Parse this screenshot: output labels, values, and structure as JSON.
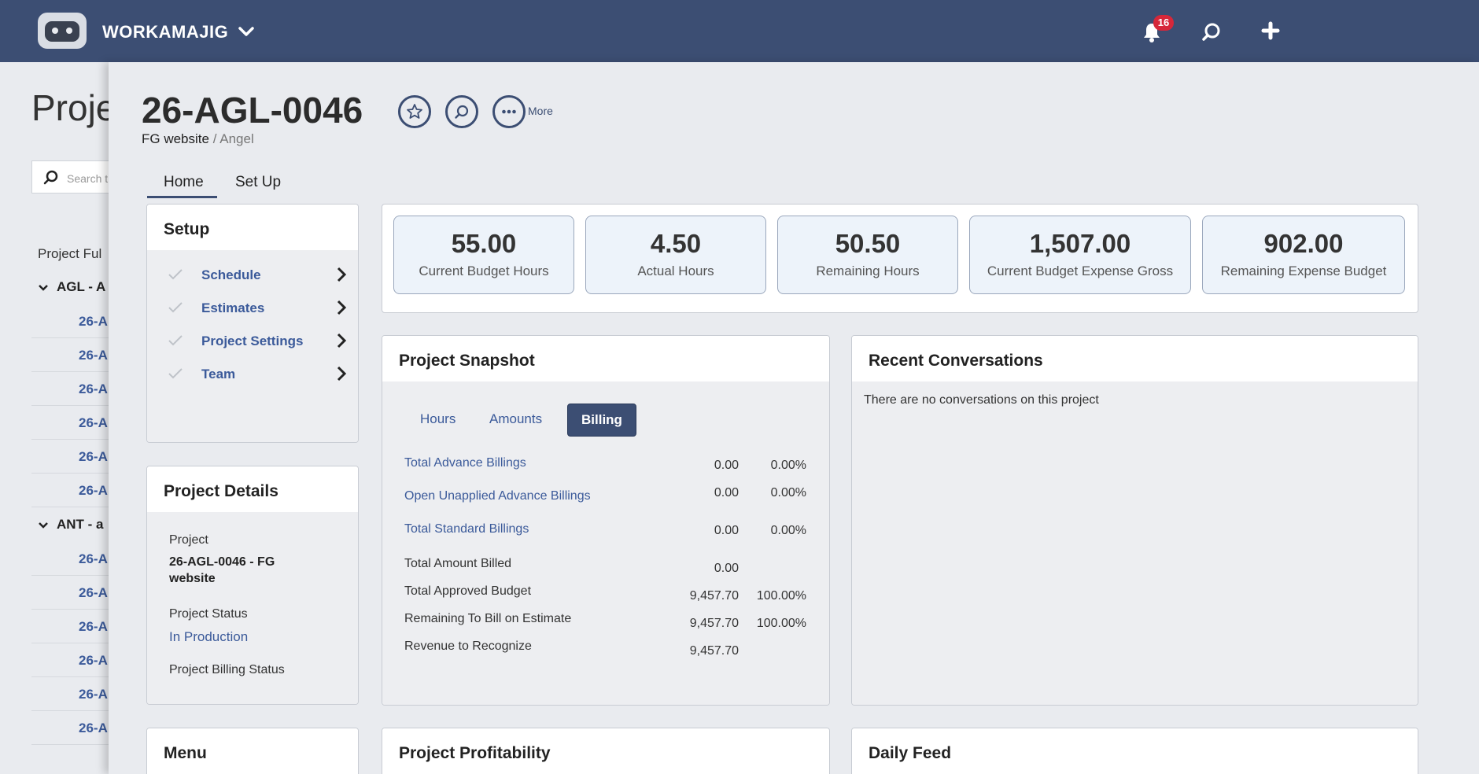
{
  "topbar": {
    "brand": "WORKAMAJIG",
    "notification_count": "16"
  },
  "background": {
    "title": "Proje",
    "search_placeholder": "Search t",
    "column_header": "Project Ful",
    "groups": [
      {
        "label": "AGL - A",
        "rows": [
          "26-A",
          "26-A",
          "26-A",
          "26-A",
          "26-A",
          "26-A"
        ]
      },
      {
        "label": "ANT - a",
        "rows": [
          "26-A",
          "26-A",
          "26-A",
          "26-A",
          "26-A",
          "26-A"
        ]
      }
    ]
  },
  "project": {
    "number": "26-AGL-0046",
    "more_label": "More",
    "breadcrumb_name": "FG website",
    "breadcrumb_sep": "/",
    "breadcrumb_owner": "Angel"
  },
  "tabs": [
    "Home",
    "Set Up"
  ],
  "setup": {
    "title": "Setup",
    "items": [
      "Schedule",
      "Estimates",
      "Project Settings",
      "Team"
    ]
  },
  "details": {
    "title": "Project Details",
    "project_label": "Project",
    "project_value": "26-AGL-0046 - FG website",
    "status_label": "Project Status",
    "status_value": "In Production",
    "billing_status_label": "Project Billing Status"
  },
  "kpis": [
    {
      "value": "55.00",
      "label": "Current Budget Hours"
    },
    {
      "value": "4.50",
      "label": "Actual Hours"
    },
    {
      "value": "50.50",
      "label": "Remaining Hours"
    },
    {
      "value": "1,507.00",
      "label": "Current Budget Expense Gross"
    },
    {
      "value": "902.00",
      "label": "Remaining Expense Budget"
    }
  ],
  "snapshot": {
    "title": "Project Snapshot",
    "tabs": [
      "Hours",
      "Amounts",
      "Billing"
    ],
    "active_tab": "Billing",
    "rows": [
      {
        "label": "Total Advance Billings",
        "value": "0.00",
        "pct": "0.00%"
      },
      {
        "label": "Open Unapplied Advance Billings",
        "value": "0.00",
        "pct": "0.00%"
      },
      {
        "label": "Total Standard Billings",
        "value": "0.00",
        "pct": "0.00%"
      },
      {
        "label": "Total Amount Billed",
        "value": "0.00",
        "pct": ""
      },
      {
        "label": "Total Approved Budget",
        "value": "9,457.70",
        "pct": "100.00%"
      },
      {
        "label": "Remaining To Bill on Estimate",
        "value": "9,457.70",
        "pct": "100.00%"
      },
      {
        "label": "Revenue to Recognize",
        "value": "9,457.70",
        "pct": ""
      }
    ]
  },
  "conversations": {
    "title": "Recent Conversations",
    "empty_text": "There are no conversations on this project"
  },
  "bottom_cards": {
    "menu": "Menu",
    "profitability": "Project Profitability",
    "daily_feed": "Daily Feed"
  }
}
